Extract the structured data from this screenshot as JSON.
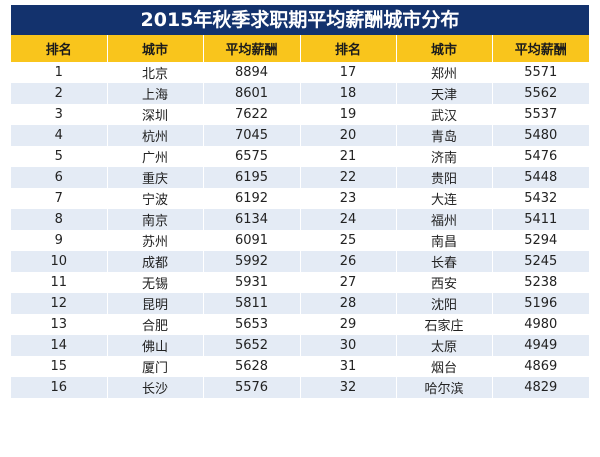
{
  "colors": {
    "title_bg": "#13326d",
    "title_text": "#ffffff",
    "header_bg": "#f9c51c",
    "row_alt_bg": "#e4ebf5"
  },
  "chart_data": {
    "type": "table",
    "title": "2015年秋季求职期平均薪酬城市分布",
    "columns": [
      "排名",
      "城市",
      "平均薪酬",
      "排名",
      "城市",
      "平均薪酬"
    ],
    "rows": [
      {
        "rank": 1,
        "city": "北京",
        "salary": 8894
      },
      {
        "rank": 2,
        "city": "上海",
        "salary": 8601
      },
      {
        "rank": 3,
        "city": "深圳",
        "salary": 7622
      },
      {
        "rank": 4,
        "city": "杭州",
        "salary": 7045
      },
      {
        "rank": 5,
        "city": "广州",
        "salary": 6575
      },
      {
        "rank": 6,
        "city": "重庆",
        "salary": 6195
      },
      {
        "rank": 7,
        "city": "宁波",
        "salary": 6192
      },
      {
        "rank": 8,
        "city": "南京",
        "salary": 6134
      },
      {
        "rank": 9,
        "city": "苏州",
        "salary": 6091
      },
      {
        "rank": 10,
        "city": "成都",
        "salary": 5992
      },
      {
        "rank": 11,
        "city": "无锡",
        "salary": 5931
      },
      {
        "rank": 12,
        "city": "昆明",
        "salary": 5811
      },
      {
        "rank": 13,
        "city": "合肥",
        "salary": 5653
      },
      {
        "rank": 14,
        "city": "佛山",
        "salary": 5652
      },
      {
        "rank": 15,
        "city": "厦门",
        "salary": 5628
      },
      {
        "rank": 16,
        "city": "长沙",
        "salary": 5576
      },
      {
        "rank": 17,
        "city": "郑州",
        "salary": 5571
      },
      {
        "rank": 18,
        "city": "天津",
        "salary": 5562
      },
      {
        "rank": 19,
        "city": "武汉",
        "salary": 5537
      },
      {
        "rank": 20,
        "city": "青岛",
        "salary": 5480
      },
      {
        "rank": 21,
        "city": "济南",
        "salary": 5476
      },
      {
        "rank": 22,
        "city": "贵阳",
        "salary": 5448
      },
      {
        "rank": 23,
        "city": "大连",
        "salary": 5432
      },
      {
        "rank": 24,
        "city": "福州",
        "salary": 5411
      },
      {
        "rank": 25,
        "city": "南昌",
        "salary": 5294
      },
      {
        "rank": 26,
        "city": "长春",
        "salary": 5245
      },
      {
        "rank": 27,
        "city": "西安",
        "salary": 5238
      },
      {
        "rank": 28,
        "city": "沈阳",
        "salary": 5196
      },
      {
        "rank": 29,
        "city": "石家庄",
        "salary": 4980
      },
      {
        "rank": 30,
        "city": "太原",
        "salary": 4949
      },
      {
        "rank": 31,
        "city": "烟台",
        "salary": 4869
      },
      {
        "rank": 32,
        "city": "哈尔滨",
        "salary": 4829
      }
    ]
  }
}
